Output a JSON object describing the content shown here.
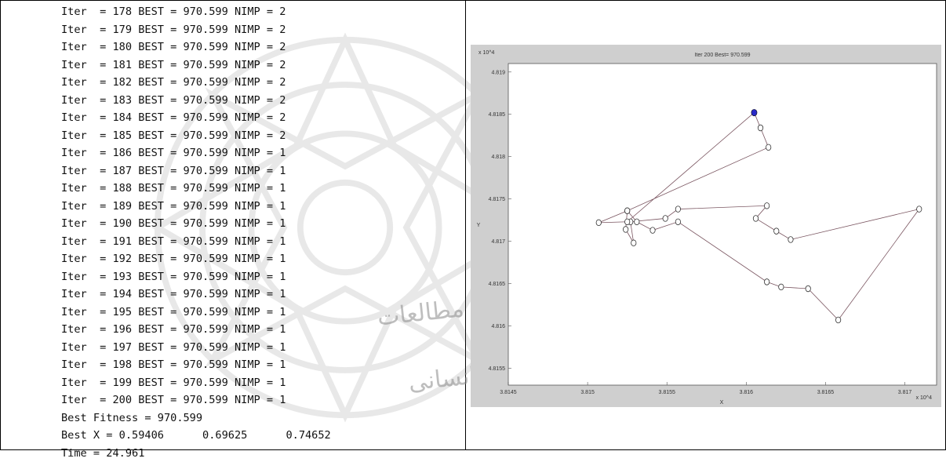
{
  "console": {
    "lines": [
      "Iter  = 178 BEST = 970.599 NIMP = 2",
      "Iter  = 179 BEST = 970.599 NIMP = 2",
      "Iter  = 180 BEST = 970.599 NIMP = 2",
      "Iter  = 181 BEST = 970.599 NIMP = 2",
      "Iter  = 182 BEST = 970.599 NIMP = 2",
      "Iter  = 183 BEST = 970.599 NIMP = 2",
      "Iter  = 184 BEST = 970.599 NIMP = 2",
      "Iter  = 185 BEST = 970.599 NIMP = 2",
      "Iter  = 186 BEST = 970.599 NIMP = 1",
      "Iter  = 187 BEST = 970.599 NIMP = 1",
      "Iter  = 188 BEST = 970.599 NIMP = 1",
      "Iter  = 189 BEST = 970.599 NIMP = 1",
      "Iter  = 190 BEST = 970.599 NIMP = 1",
      "Iter  = 191 BEST = 970.599 NIMP = 1",
      "Iter  = 192 BEST = 970.599 NIMP = 1",
      "Iter  = 193 BEST = 970.599 NIMP = 1",
      "Iter  = 194 BEST = 970.599 NIMP = 1",
      "Iter  = 195 BEST = 970.599 NIMP = 1",
      "Iter  = 196 BEST = 970.599 NIMP = 1",
      "Iter  = 197 BEST = 970.599 NIMP = 1",
      "Iter  = 198 BEST = 970.599 NIMP = 1",
      "Iter  = 199 BEST = 970.599 NIMP = 1",
      "Iter  = 200 BEST = 970.599 NIMP = 1",
      "Best Fitness = 970.599",
      "Best X = 0.59406      0.69625      0.74652",
      "Time = 24.961"
    ]
  },
  "watermark": {
    "line1": "پژوهشگاه علوم انسانی و مطالعات",
    "line2": "پرتال جامع علوم انسانی"
  },
  "chart_data": {
    "type": "line",
    "title": "Iter 200 Best= 970.599",
    "xlabel": "X",
    "ylabel": "Y",
    "x_exponent_label": "x 10^4",
    "y_exponent_label": "x 10^4",
    "xlim": [
      3.8145,
      3.8172
    ],
    "ylim": [
      4.8153,
      4.8191
    ],
    "x_ticks": [
      "3.8145",
      "3.815",
      "3.8155",
      "3.816",
      "3.8165",
      "3.817"
    ],
    "x_tick_values": [
      3.8145,
      3.815,
      3.8155,
      3.816,
      3.8165,
      3.817
    ],
    "y_ticks": [
      "4.819",
      "4.8185",
      "4.818",
      "4.8175",
      "4.817",
      "4.8165",
      "4.816",
      "4.8155"
    ],
    "y_tick_values": [
      4.819,
      4.8185,
      4.818,
      4.8175,
      4.817,
      4.8165,
      4.816,
      4.8155
    ],
    "grid": false,
    "route": {
      "x": [
        3.81605,
        3.81609,
        3.81614,
        3.81525,
        3.81524,
        3.81529,
        3.81527,
        3.81549,
        3.81557,
        3.81613,
        3.81606,
        3.81619,
        3.81628,
        3.81709,
        3.81658,
        3.81639,
        3.81622,
        3.81613,
        3.81557,
        3.81541,
        3.81531,
        3.81525,
        3.81507,
        3.81525,
        3.81605
      ],
      "y": [
        4.81852,
        4.81834,
        4.81811,
        4.81736,
        4.81714,
        4.81698,
        4.81723,
        4.81727,
        4.81738,
        4.81742,
        4.81727,
        4.81712,
        4.81702,
        4.81738,
        4.81607,
        4.81644,
        4.81646,
        4.81652,
        4.81723,
        4.81713,
        4.81723,
        4.81736,
        4.81722,
        4.81723,
        4.81852
      ]
    },
    "start_city": {
      "x": 3.81605,
      "y": 4.81852
    },
    "colors": {
      "route": "#7a5560",
      "start_city": "#2a2ac8",
      "plot_bg": "#ffffff",
      "window_bg": "#cfcfcf"
    }
  }
}
